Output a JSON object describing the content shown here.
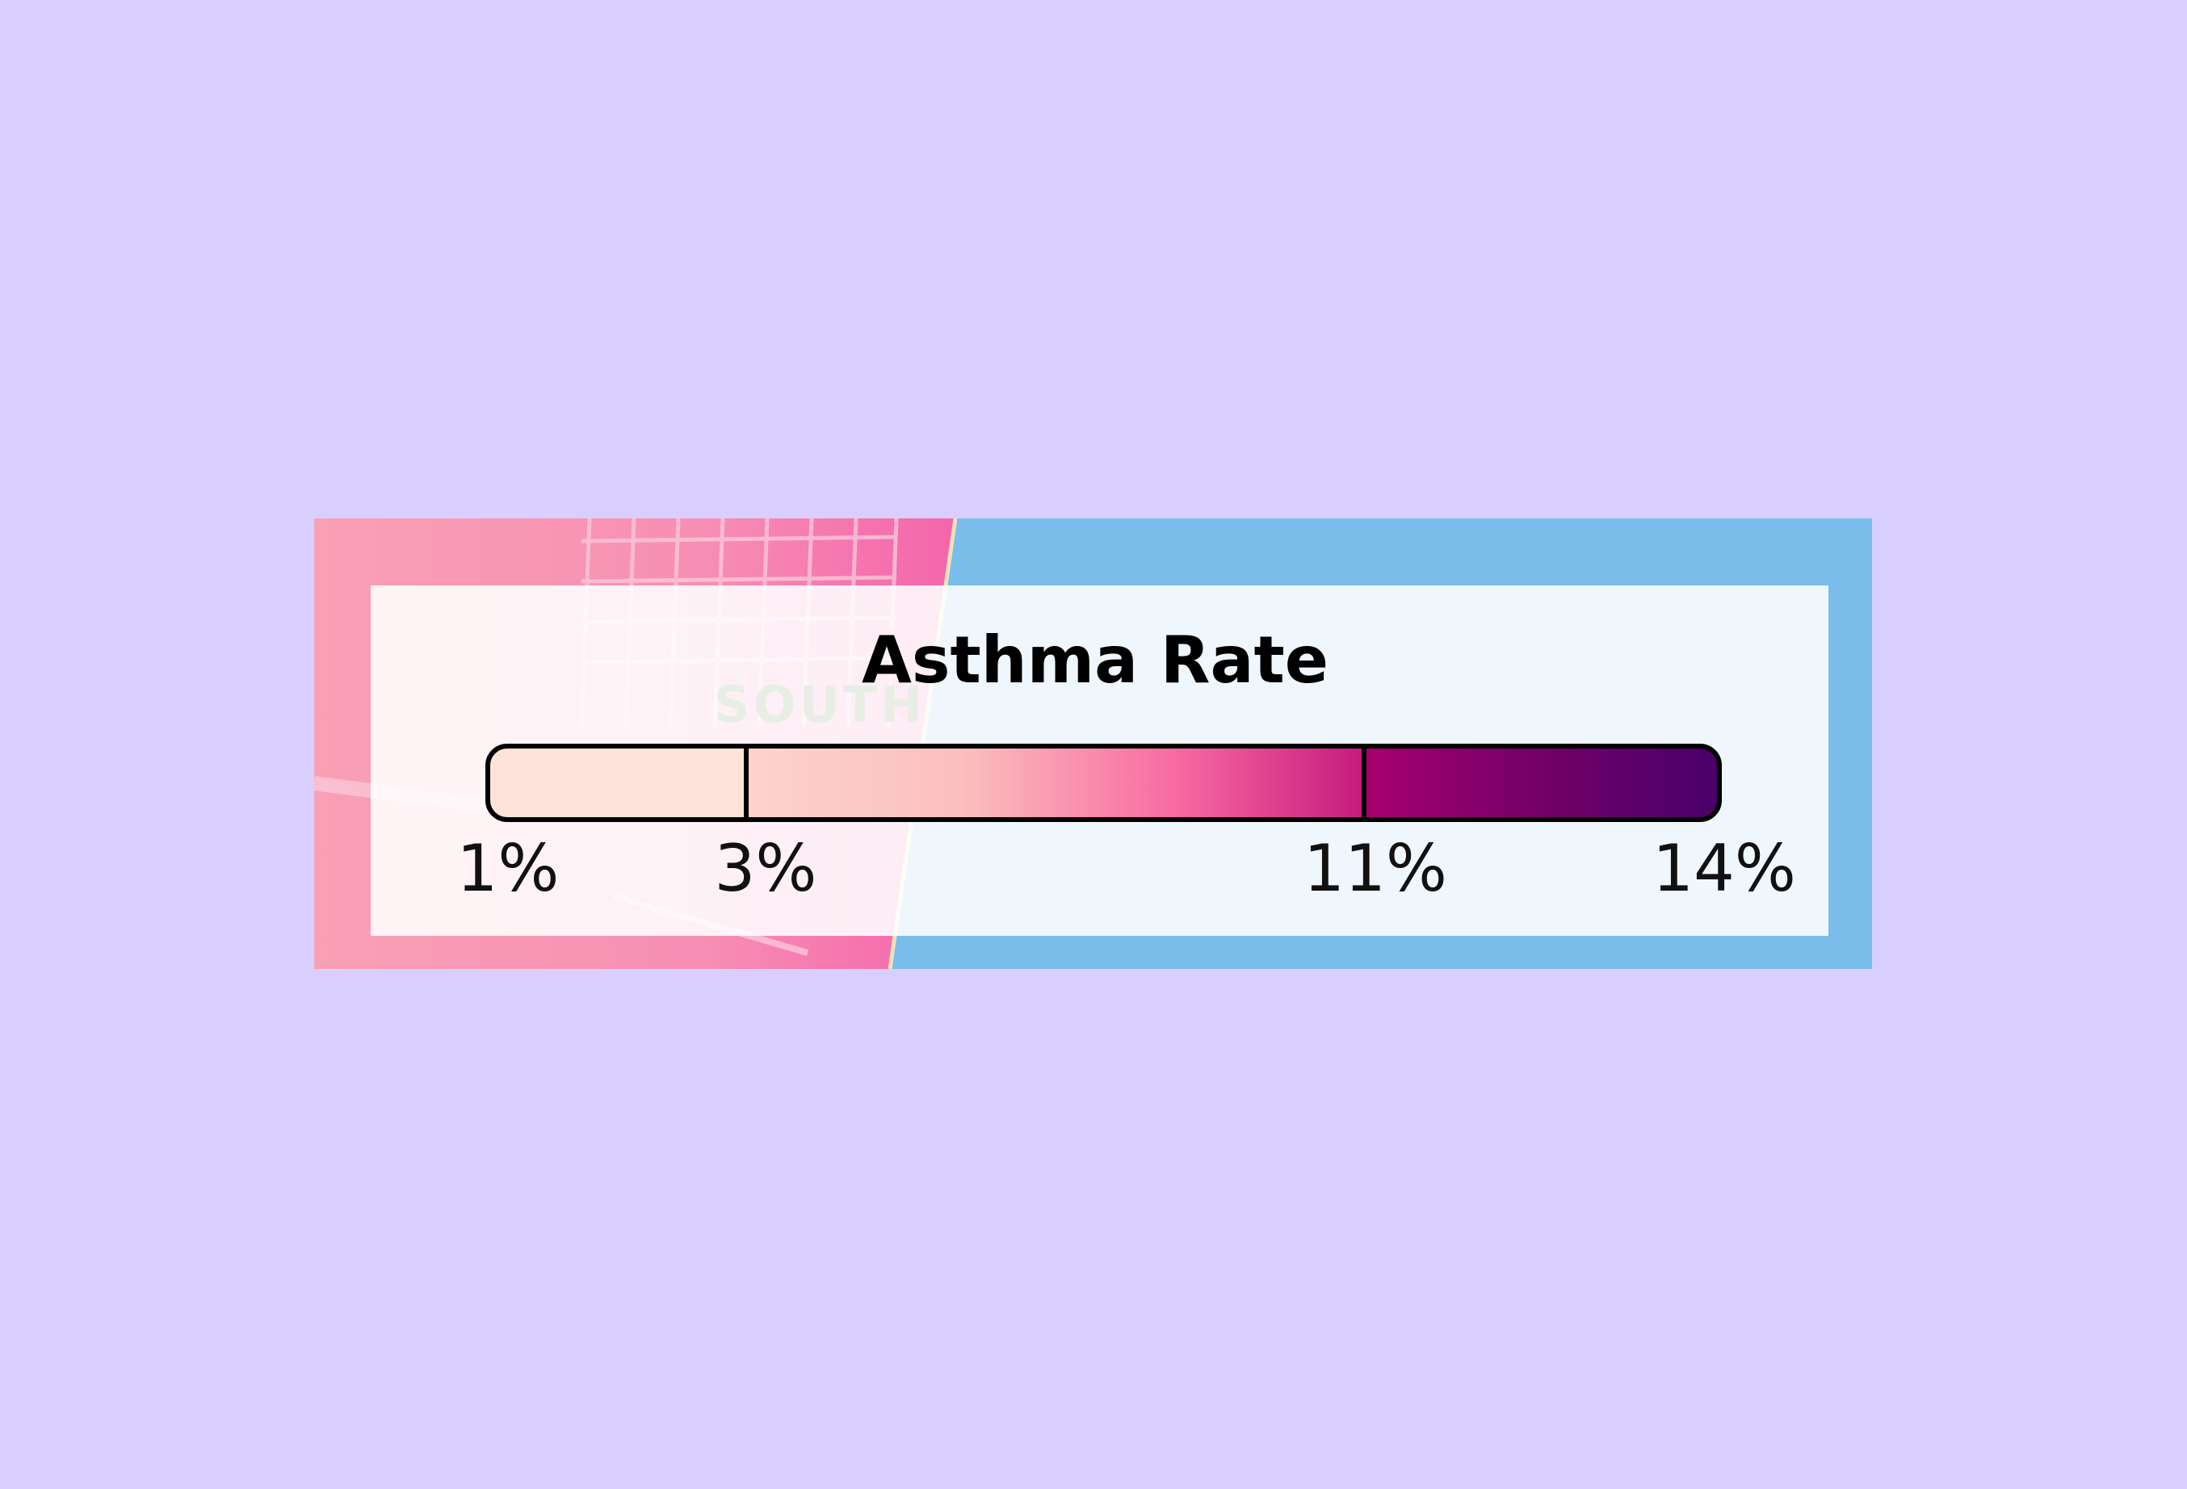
{
  "map": {
    "label": "SOUTH"
  },
  "legend": {
    "title": "Asthma Rate",
    "ticks": [
      "1%",
      "3%",
      "11%",
      "14%"
    ]
  }
}
